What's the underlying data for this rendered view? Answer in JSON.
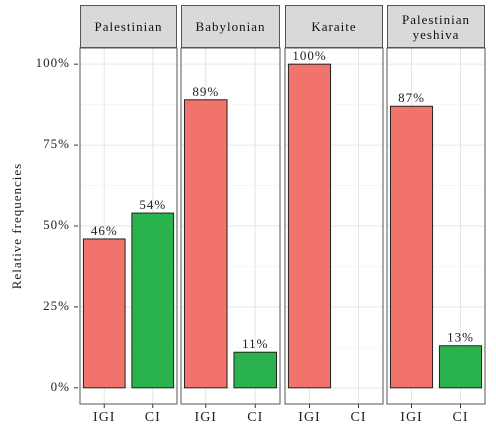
{
  "chart_data": {
    "type": "bar",
    "ylabel": "Relative frequencies",
    "categories": [
      "IGI",
      "CI"
    ],
    "colors": [
      "#f1736b",
      "#2ab24c"
    ],
    "ylim": [
      -5,
      105
    ],
    "yticks": [
      {
        "value": 0,
        "label": "0%"
      },
      {
        "value": 25,
        "label": "25%"
      },
      {
        "value": 50,
        "label": "50%"
      },
      {
        "value": 75,
        "label": "75%"
      },
      {
        "value": 100,
        "label": "100%"
      }
    ],
    "grid": true,
    "facets": [
      {
        "title": "Palestinian",
        "values": [
          46,
          54
        ],
        "value_labels": [
          "46%",
          "54%"
        ]
      },
      {
        "title": "Babylonian",
        "values": [
          89,
          11
        ],
        "value_labels": [
          "89%",
          "11%"
        ]
      },
      {
        "title": "Karaite",
        "values": [
          100,
          null
        ],
        "value_labels": [
          "100%",
          null
        ]
      },
      {
        "title": "Palestinian yeshiva",
        "values": [
          87,
          13
        ],
        "value_labels": [
          "87%",
          "13%"
        ]
      }
    ]
  }
}
